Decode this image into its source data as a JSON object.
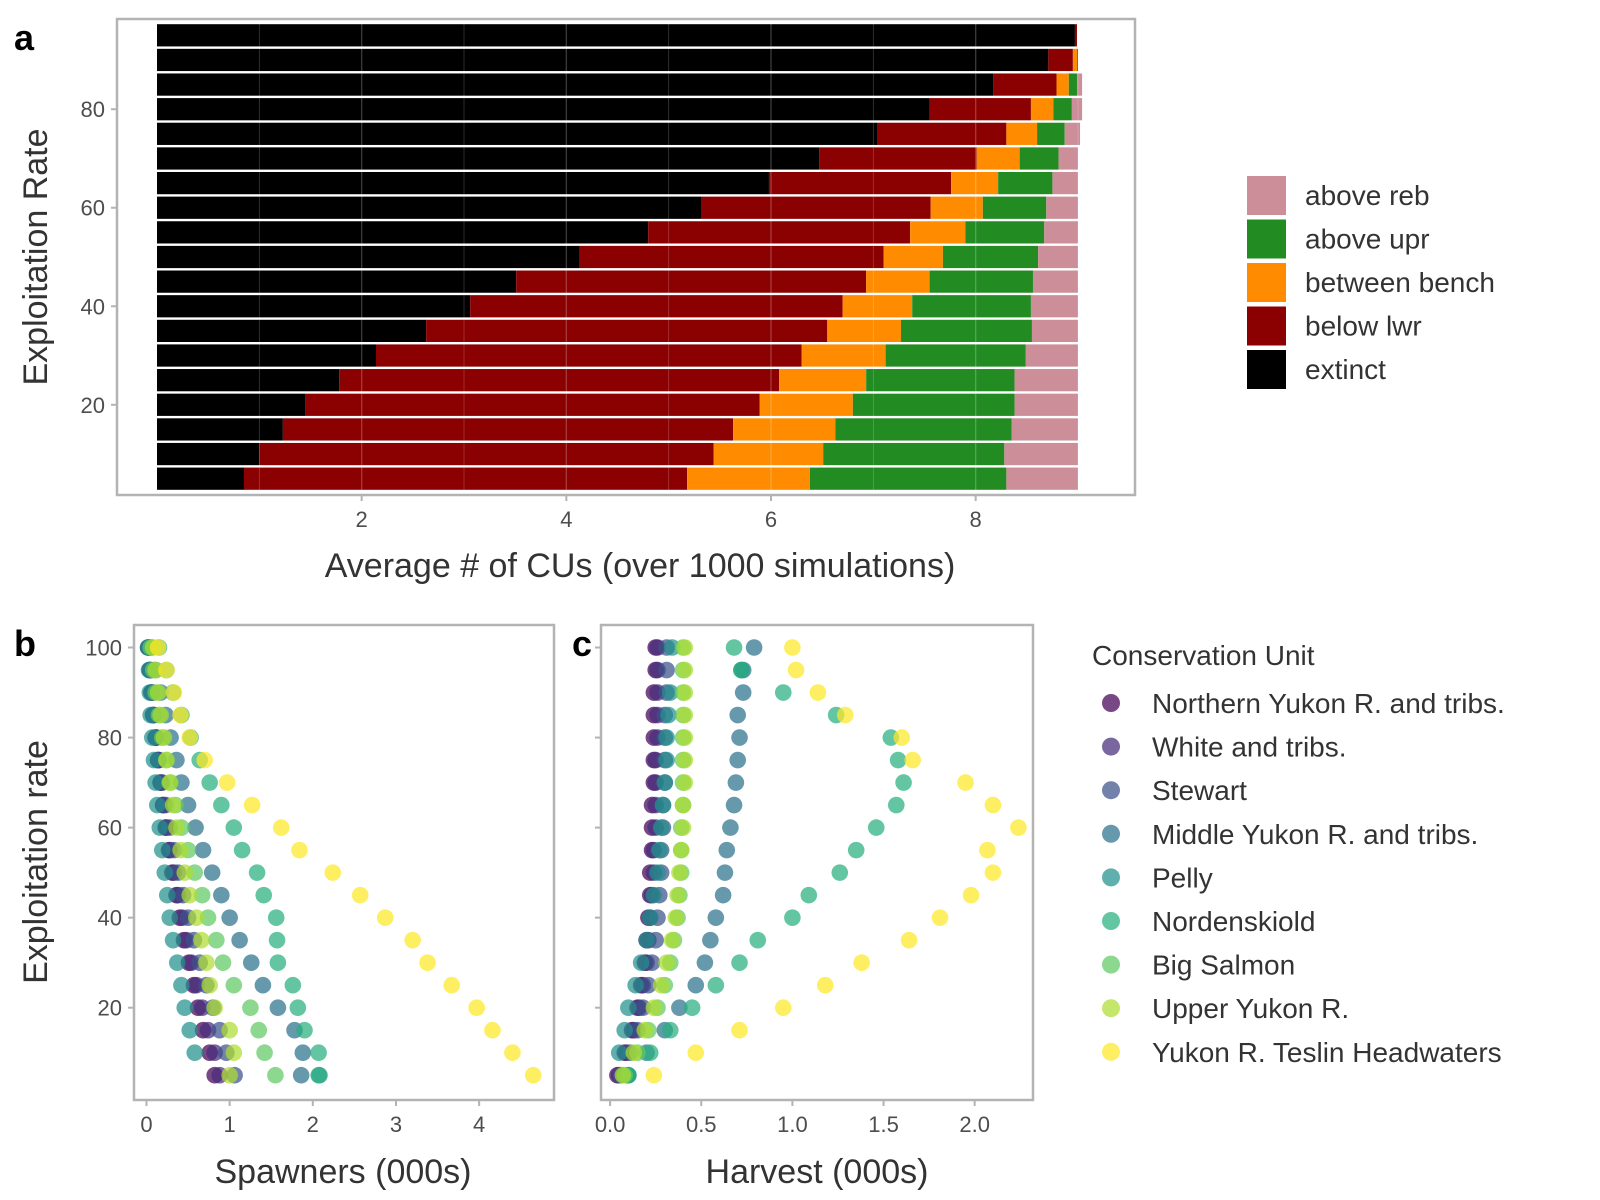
{
  "chart_data": [
    {
      "panel": "a",
      "type": "bar",
      "orientation": "horizontal",
      "stacked": true,
      "xlabel": "Average # of CUs (over 1000 simulations)",
      "ylabel": "Exploitation Rate",
      "xlim": [
        0,
        9
      ],
      "x_ticks": [
        2,
        4,
        6,
        8
      ],
      "y_ticks": [
        20,
        40,
        60,
        80
      ],
      "grid": true,
      "legend_position": "right",
      "categories": [
        5,
        10,
        15,
        20,
        25,
        30,
        35,
        40,
        45,
        50,
        55,
        60,
        65,
        70,
        75,
        80,
        85,
        90,
        95
      ],
      "series": [
        {
          "name": "extinct",
          "color": "#000000",
          "values": [
            0.85,
            1.0,
            1.23,
            1.45,
            1.78,
            2.14,
            2.63,
            3.06,
            3.51,
            4.13,
            4.8,
            5.32,
            5.98,
            6.47,
            7.04,
            7.55,
            8.17,
            8.71,
            8.97
          ]
        },
        {
          "name": "below lwr",
          "color": "#8b0000",
          "values": [
            4.33,
            4.44,
            4.4,
            4.44,
            4.3,
            4.16,
            3.92,
            3.64,
            3.42,
            2.97,
            2.56,
            2.24,
            1.78,
            1.54,
            1.26,
            0.99,
            0.62,
            0.24,
            0.02
          ]
        },
        {
          "name": "between bench",
          "color": "#ff8c00",
          "values": [
            1.2,
            1.07,
            1.0,
            0.91,
            0.85,
            0.82,
            0.72,
            0.68,
            0.62,
            0.58,
            0.54,
            0.51,
            0.46,
            0.42,
            0.3,
            0.22,
            0.12,
            0.04,
            0.0
          ]
        },
        {
          "name": "above upr",
          "color": "#228b22",
          "values": [
            1.92,
            1.77,
            1.72,
            1.58,
            1.45,
            1.37,
            1.28,
            1.16,
            1.01,
            0.93,
            0.77,
            0.62,
            0.53,
            0.38,
            0.27,
            0.18,
            0.08,
            0.01,
            0.0
          ]
        },
        {
          "name": "above reb",
          "color": "#cc8f99",
          "values": [
            0.7,
            0.72,
            0.65,
            0.62,
            0.62,
            0.51,
            0.45,
            0.46,
            0.44,
            0.39,
            0.33,
            0.31,
            0.25,
            0.19,
            0.15,
            0.1,
            0.05,
            0.0,
            0.0
          ]
        }
      ],
      "legend_order": [
        "above reb",
        "above upr",
        "between bench",
        "below lwr",
        "extinct"
      ]
    },
    {
      "panel": "b",
      "type": "scatter",
      "xlabel": "Spawners (000s)",
      "ylabel": "Exploitation rate",
      "xlim": [
        -0.15,
        4.9
      ],
      "ylim": [
        -0.5,
        105
      ],
      "x_ticks": [
        0,
        1,
        2,
        3,
        4
      ],
      "y_ticks": [
        20,
        40,
        60,
        80,
        100
      ],
      "y": [
        5,
        10,
        15,
        20,
        25,
        30,
        35,
        40,
        45,
        50,
        55,
        60,
        65,
        70,
        75,
        80,
        85,
        90,
        95,
        100
      ],
      "series": [
        {
          "name": "Northern Yukon R. and tribs.",
          "color": "#440154",
          "values": [
            0.82,
            0.76,
            0.68,
            0.62,
            0.57,
            0.51,
            0.45,
            0.4,
            0.36,
            0.31,
            0.27,
            0.23,
            0.2,
            0.17,
            0.14,
            0.11,
            0.08,
            0.06,
            0.04,
            0.02
          ]
        },
        {
          "name": "White and tribs.",
          "color": "#472d7b",
          "values": [
            0.88,
            0.82,
            0.74,
            0.67,
            0.6,
            0.54,
            0.48,
            0.43,
            0.38,
            0.33,
            0.28,
            0.24,
            0.2,
            0.17,
            0.14,
            0.11,
            0.08,
            0.06,
            0.04,
            0.02
          ]
        },
        {
          "name": "Stewart",
          "color": "#3b528b",
          "values": [
            1.06,
            0.96,
            0.88,
            0.8,
            0.72,
            0.64,
            0.57,
            0.5,
            0.44,
            0.38,
            0.33,
            0.28,
            0.23,
            0.19,
            0.15,
            0.12,
            0.09,
            0.07,
            0.05,
            0.03
          ]
        },
        {
          "name": "Middle Yukon R. and tribs.",
          "color": "#2c728e",
          "values": [
            1.86,
            1.88,
            1.78,
            1.58,
            1.4,
            1.26,
            1.12,
            1.0,
            0.9,
            0.79,
            0.68,
            0.59,
            0.5,
            0.42,
            0.36,
            0.29,
            0.23,
            0.17,
            0.11,
            0.06
          ]
        },
        {
          "name": "Pelly",
          "color": "#21918c",
          "values": [
            2.08,
            0.58,
            0.52,
            0.46,
            0.42,
            0.37,
            0.32,
            0.28,
            0.25,
            0.22,
            0.19,
            0.16,
            0.13,
            0.11,
            0.09,
            0.07,
            0.05,
            0.04,
            0.03,
            0.02
          ]
        },
        {
          "name": "Nordenskiold",
          "color": "#28ae80",
          "values": [
            2.07,
            2.07,
            1.9,
            1.82,
            1.76,
            1.58,
            1.57,
            1.56,
            1.41,
            1.33,
            1.15,
            1.05,
            0.9,
            0.76,
            0.64,
            0.53,
            0.42,
            0.32,
            0.24,
            0.15
          ]
        },
        {
          "name": "Big Salmon",
          "color": "#5ec962",
          "values": [
            1.55,
            1.42,
            1.35,
            1.25,
            1.05,
            0.92,
            0.84,
            0.74,
            0.67,
            0.58,
            0.5,
            0.42,
            0.35,
            0.29,
            0.24,
            0.19,
            0.15,
            0.11,
            0.08,
            0.05
          ]
        },
        {
          "name": "Upper Yukon R.",
          "color": "#addc30",
          "values": [
            1.0,
            1.05,
            1.0,
            0.82,
            0.76,
            0.72,
            0.66,
            0.6,
            0.52,
            0.46,
            0.41,
            0.36,
            0.32,
            0.28,
            0.24,
            0.21,
            0.17,
            0.14,
            0.11,
            0.08
          ]
        },
        {
          "name": "Yukon R. Teslin Headwaters",
          "color": "#fde725",
          "values": [
            4.65,
            4.4,
            4.16,
            3.97,
            3.67,
            3.38,
            3.2,
            2.87,
            2.57,
            2.24,
            1.84,
            1.62,
            1.27,
            0.97,
            0.7,
            0.52,
            0.41,
            0.33,
            0.24,
            0.14
          ]
        }
      ]
    },
    {
      "panel": "c",
      "type": "scatter",
      "xlabel": "Harvest (000s)",
      "ylabel": "",
      "xlim": [
        -0.05,
        2.32
      ],
      "ylim": [
        -0.5,
        105
      ],
      "x_ticks": [
        0.0,
        0.5,
        1.0,
        1.5,
        2.0
      ],
      "y_ticks": [
        20,
        40,
        60,
        80,
        100
      ],
      "y": [
        5,
        10,
        15,
        20,
        25,
        30,
        35,
        40,
        45,
        50,
        55,
        60,
        65,
        70,
        75,
        80,
        85,
        90,
        95,
        100
      ],
      "series": [
        {
          "name": "Northern Yukon R. and tribs.",
          "color": "#440154",
          "values": [
            0.04,
            0.08,
            0.12,
            0.15,
            0.17,
            0.19,
            0.2,
            0.21,
            0.22,
            0.22,
            0.23,
            0.23,
            0.23,
            0.24,
            0.24,
            0.24,
            0.24,
            0.24,
            0.25,
            0.25
          ]
        },
        {
          "name": "White and tribs.",
          "color": "#472d7b",
          "values": [
            0.05,
            0.09,
            0.13,
            0.16,
            0.18,
            0.2,
            0.21,
            0.22,
            0.23,
            0.24,
            0.24,
            0.25,
            0.25,
            0.25,
            0.25,
            0.26,
            0.26,
            0.26,
            0.26,
            0.26
          ]
        },
        {
          "name": "Stewart",
          "color": "#3b528b",
          "values": [
            0.06,
            0.11,
            0.15,
            0.18,
            0.21,
            0.23,
            0.25,
            0.26,
            0.27,
            0.28,
            0.28,
            0.29,
            0.29,
            0.3,
            0.3,
            0.3,
            0.3,
            0.31,
            0.31,
            0.31
          ]
        },
        {
          "name": "Middle Yukon R. and tribs.",
          "color": "#2c728e",
          "values": [
            0.1,
            0.2,
            0.3,
            0.38,
            0.47,
            0.52,
            0.55,
            0.58,
            0.62,
            0.63,
            0.64,
            0.66,
            0.68,
            0.69,
            0.7,
            0.71,
            0.7,
            0.73,
            0.73,
            0.79
          ]
        },
        {
          "name": "Pelly",
          "color": "#21918c",
          "values": [
            0.1,
            0.05,
            0.08,
            0.1,
            0.14,
            0.17,
            0.2,
            0.22,
            0.24,
            0.26,
            0.27,
            0.28,
            0.29,
            0.3,
            0.31,
            0.31,
            0.32,
            0.33,
            0.72,
            0.34
          ]
        },
        {
          "name": "Nordenskiold",
          "color": "#28ae80",
          "values": [
            0.1,
            0.22,
            0.33,
            0.45,
            0.58,
            0.71,
            0.81,
            1.0,
            1.09,
            1.26,
            1.35,
            1.46,
            1.57,
            1.61,
            1.58,
            1.54,
            1.24,
            0.95,
            0.72,
            0.68
          ]
        },
        {
          "name": "Big Salmon",
          "color": "#5ec962",
          "values": [
            0.08,
            0.15,
            0.21,
            0.26,
            0.3,
            0.33,
            0.35,
            0.37,
            0.38,
            0.39,
            0.39,
            0.39,
            0.4,
            0.4,
            0.4,
            0.4,
            0.4,
            0.4,
            0.4,
            0.4
          ]
        },
        {
          "name": "Upper Yukon R.",
          "color": "#addc30",
          "values": [
            0.07,
            0.13,
            0.19,
            0.24,
            0.28,
            0.31,
            0.34,
            0.36,
            0.37,
            0.38,
            0.39,
            0.4,
            0.4,
            0.41,
            0.41,
            0.41,
            0.41,
            0.41,
            0.41,
            0.41
          ]
        },
        {
          "name": "Yukon R. Teslin Headwaters",
          "color": "#fde725",
          "values": [
            0.24,
            0.47,
            0.71,
            0.95,
            1.18,
            1.38,
            1.64,
            1.81,
            1.98,
            2.1,
            2.07,
            2.24,
            2.1,
            1.95,
            1.66,
            1.6,
            1.29,
            1.14,
            1.02,
            1.0
          ]
        }
      ]
    }
  ],
  "panel_tags": {
    "a": "a",
    "b": "b",
    "c": "c"
  },
  "legend2": {
    "title": "Conservation Unit"
  }
}
